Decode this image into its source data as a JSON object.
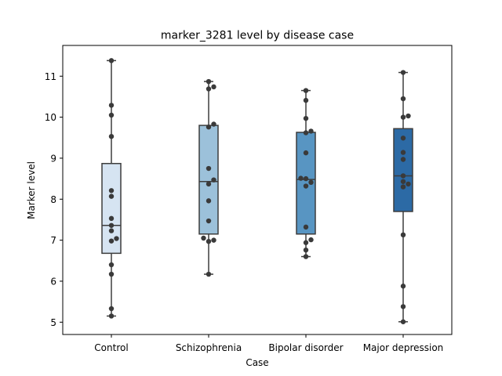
{
  "chart_data": {
    "type": "box",
    "title": "marker_3281 level by disease case",
    "xlabel": "Case",
    "ylabel": "Marker level",
    "ylim": [
      4.7,
      11.75
    ],
    "yticks": [
      5,
      6,
      7,
      8,
      9,
      10,
      11
    ],
    "categories": [
      "Control",
      "Schizophrenia",
      "Bipolar disorder",
      "Major depression"
    ],
    "box_colors": [
      "#d6e4f2",
      "#9cc1da",
      "#5895c2",
      "#2c6aa5"
    ],
    "boxes": [
      {
        "min": 5.15,
        "q1": 6.68,
        "median": 7.36,
        "q3": 8.87,
        "max": 11.38
      },
      {
        "min": 6.17,
        "q1": 7.15,
        "median": 8.43,
        "q3": 9.8,
        "max": 10.87
      },
      {
        "min": 6.6,
        "q1": 7.15,
        "median": 8.48,
        "q3": 9.63,
        "max": 10.65
      },
      {
        "min": 5.01,
        "q1": 7.7,
        "median": 8.57,
        "q3": 9.72,
        "max": 11.09
      }
    ],
    "points": [
      [
        5.15,
        5.33,
        6.17,
        6.4,
        6.98,
        7.04,
        7.23,
        7.36,
        7.53,
        8.07,
        8.21,
        9.53,
        10.05,
        10.29,
        11.38
      ],
      [
        6.17,
        6.97,
        7.0,
        7.05,
        7.47,
        7.96,
        8.37,
        8.47,
        8.75,
        9.76,
        9.83,
        10.69,
        10.74,
        10.87
      ],
      [
        6.6,
        6.76,
        6.94,
        7.01,
        7.32,
        8.32,
        8.41,
        8.5,
        8.51,
        9.13,
        9.62,
        9.66,
        9.97,
        10.41,
        10.65
      ],
      [
        5.01,
        5.38,
        5.88,
        7.13,
        8.3,
        8.37,
        8.43,
        8.57,
        8.97,
        9.14,
        9.49,
        10.0,
        10.03,
        10.45,
        11.09
      ]
    ],
    "point_color": "#3a3a3a",
    "grid": false,
    "legend": "none"
  }
}
